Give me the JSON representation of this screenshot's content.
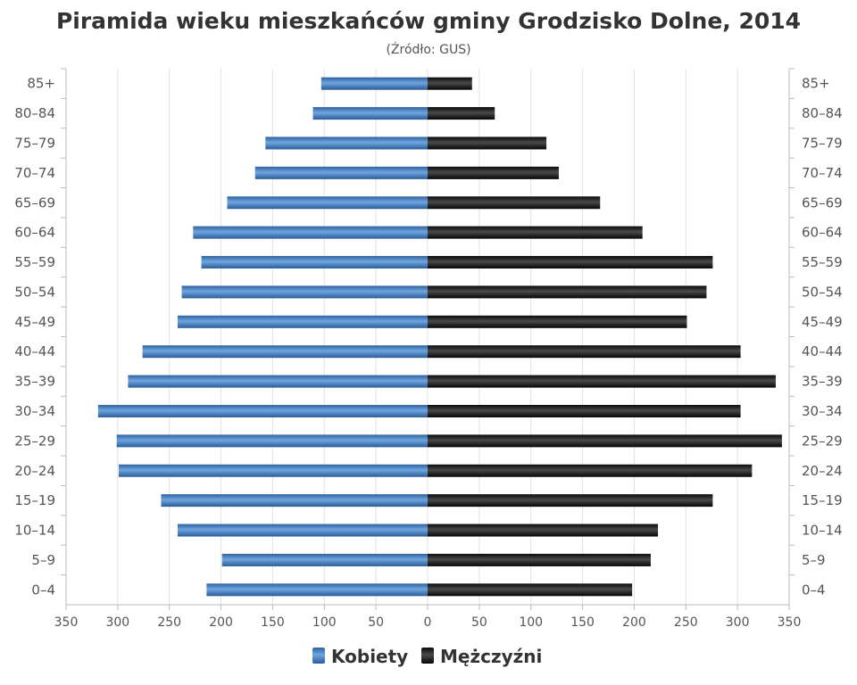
{
  "colors": {
    "women": "#3f7fc4",
    "men": "#1c1c1c",
    "grid": "#e2e2e2",
    "axis": "#bbbbbb"
  },
  "chart_data": {
    "type": "bar",
    "orientation": "horizontal-pyramid",
    "title": "Piramida wieku mieszkańców gminy Grodzisko Dolne, 2014",
    "subtitle": "(Źródło: GUS)",
    "categories": [
      "85+",
      "80–84",
      "75–79",
      "70–74",
      "65–69",
      "60–64",
      "55–59",
      "50–54",
      "45–49",
      "40–44",
      "35–39",
      "30–34",
      "25–29",
      "20–24",
      "15–19",
      "10–14",
      "5–9",
      "0–4"
    ],
    "series": [
      {
        "name": "Kobiety",
        "side": "left",
        "values": [
          103,
          111,
          157,
          167,
          194,
          227,
          219,
          238,
          242,
          276,
          290,
          319,
          301,
          299,
          258,
          242,
          199,
          214
        ]
      },
      {
        "name": "Mężczyźni",
        "side": "right",
        "values": [
          43,
          65,
          115,
          127,
          167,
          208,
          276,
          270,
          251,
          303,
          337,
          303,
          343,
          314,
          276,
          223,
          216,
          198
        ]
      }
    ],
    "xlim": [
      -350,
      350
    ],
    "xticks": [
      "350",
      "300",
      "250",
      "200",
      "150",
      "100",
      "50",
      "0",
      "50",
      "100",
      "150",
      "200",
      "250",
      "300",
      "350"
    ],
    "grid": "vertical",
    "legend": "bottom-center"
  }
}
